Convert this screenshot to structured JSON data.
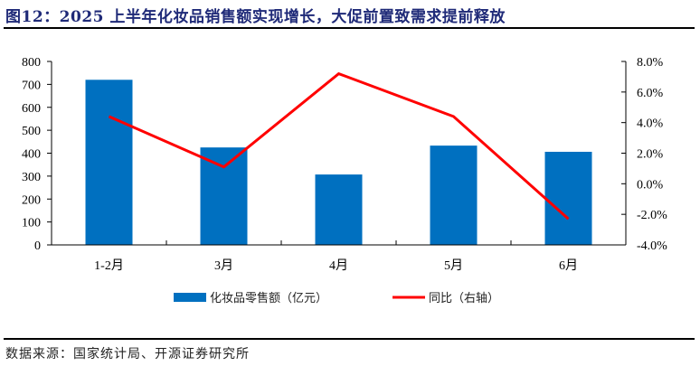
{
  "header": {
    "title": "图12：2025 上半年化妆品销售额实现增长，大促前置致需求提前释放"
  },
  "footer": {
    "source": "数据来源：国家统计局、开源证券研究所"
  },
  "colors": {
    "bar": "#0070c0",
    "line": "#ff0000",
    "title": "#1f2a78",
    "axis": "#000000"
  },
  "chart_data": {
    "type": "bar+line",
    "title": "图12：2025 上半年化妆品销售额实现增长，大促前置致需求提前释放",
    "categories": [
      "1-2月",
      "3月",
      "4月",
      "5月",
      "6月"
    ],
    "series": [
      {
        "name": "化妆品零售额（亿元）",
        "type": "bar",
        "axis": "left",
        "values": [
          720,
          425,
          307,
          433,
          406
        ]
      },
      {
        "name": "同比（右轴）",
        "type": "line",
        "axis": "right",
        "values": [
          4.4,
          1.1,
          7.2,
          4.4,
          -2.3
        ],
        "unit": "%"
      }
    ],
    "left_axis": {
      "ylim": [
        0,
        800
      ],
      "ticks": [
        "0",
        "100",
        "200",
        "300",
        "400",
        "500",
        "600",
        "700",
        "800"
      ]
    },
    "right_axis": {
      "ylim": [
        -4.0,
        8.0
      ],
      "ticks": [
        "-4.0%",
        "-2.0%",
        "0.0%",
        "2.0%",
        "4.0%",
        "6.0%",
        "8.0%"
      ]
    },
    "xlabel": "",
    "ylabel": "",
    "grid": false,
    "legend_position": "bottom"
  }
}
